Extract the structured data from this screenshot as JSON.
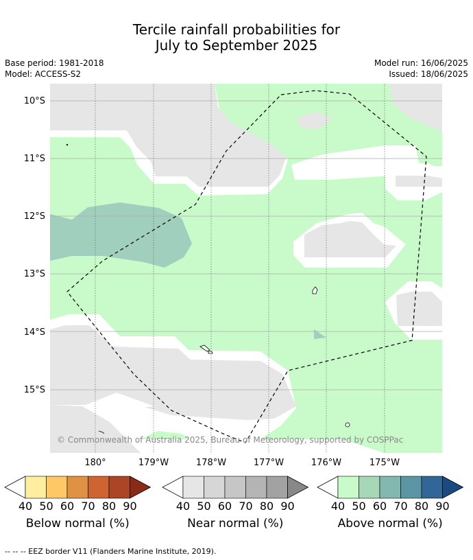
{
  "title_line1": "Tercile rainfall probabilities for",
  "title_line2": "July to September 2025",
  "base_period": "Base period: 1981-2018",
  "model": "Model: ACCESS-S2",
  "model_run": "Model run: 16/06/2025",
  "issued": "Issued: 18/06/2025",
  "copyright": "© Commonwealth of Australia 2025, Bureau of Meteorology, supported by COSPPac",
  "lat_labels": [
    "10°S",
    "11°S",
    "12°S",
    "13°S",
    "14°S",
    "15°S"
  ],
  "lon_labels": [
    "180°",
    "179°W",
    "178°W",
    "177°W",
    "176°W",
    "175°W"
  ],
  "colorbars": [
    {
      "label": "Below normal (%)",
      "ticks": [
        "40",
        "50",
        "60",
        "70",
        "80",
        "90"
      ],
      "colors": [
        "#ffeea0",
        "#fec866",
        "#e09244",
        "#cd6432",
        "#aa4626",
        "#8c2a18"
      ]
    },
    {
      "label": "Near normal (%)",
      "ticks": [
        "40",
        "50",
        "60",
        "70",
        "80",
        "90"
      ],
      "colors": [
        "#e6e6e6",
        "#d6d6d6",
        "#c6c6c6",
        "#b4b4b4",
        "#a2a2a2",
        "#888888"
      ]
    },
    {
      "label": "Above normal (%)",
      "ticks": [
        "40",
        "50",
        "60",
        "70",
        "80",
        "90"
      ],
      "colors": [
        "#c9fac9",
        "#a6d8b8",
        "#82b8b0",
        "#5c96a4",
        "#336698",
        "#1a4a80"
      ]
    }
  ],
  "footnote": "--  --  -- EEZ border V11 (Flanders Marine Institute, 2019).",
  "colors": {
    "near": "#e6e6e6",
    "above40": "#c9fac9",
    "above50": "#a0d0bd",
    "white": "#ffffff"
  }
}
